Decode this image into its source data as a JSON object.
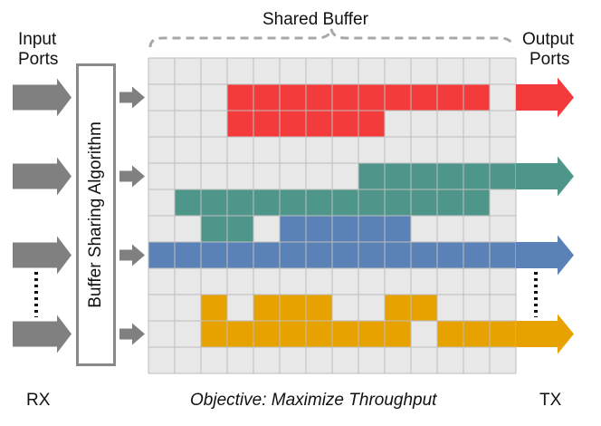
{
  "labels": {
    "shared_buffer": "Shared Buffer",
    "input_ports_line1": "Input",
    "input_ports_line2": "Ports",
    "output_ports_line1": "Output",
    "output_ports_line2": "Ports",
    "algorithm": "Buffer Sharing Algorithm",
    "rx": "RX",
    "tx": "TX",
    "objective": "Objective: Maximize Throughput"
  },
  "colors": {
    "red": "#f33b3b",
    "teal": "#4e968a",
    "blue": "#5a82b6",
    "orange": "#e8a200",
    "arrow_gray": "#808080",
    "grid_cell": "#e8e8e8",
    "grid_line": "#bdbdbd",
    "brace": "#a8a8a8"
  },
  "grid": {
    "columns": 14,
    "rows": 12
  },
  "flows": [
    {
      "name": "red-flow",
      "color": "red",
      "cells": [
        [
          1,
          3,
          12
        ],
        [
          2,
          3,
          8
        ]
      ]
    },
    {
      "name": "teal-flow",
      "color": "teal",
      "cells": [
        [
          4,
          8,
          13
        ],
        [
          5,
          1,
          12
        ],
        [
          6,
          2,
          3
        ]
      ]
    },
    {
      "name": "blue-flow",
      "color": "blue",
      "cells": [
        [
          6,
          5,
          9
        ],
        [
          7,
          0,
          13
        ]
      ]
    },
    {
      "name": "orange-flow",
      "color": "orange",
      "cells": [
        [
          9,
          2,
          2
        ],
        [
          9,
          4,
          6
        ],
        [
          9,
          9,
          10
        ],
        [
          10,
          2,
          9
        ],
        [
          10,
          11,
          13
        ]
      ]
    }
  ],
  "output_arrow_rows": [
    1.5,
    4.5,
    7.5,
    10.5
  ],
  "input_arrow_rows": [
    1.5,
    4.5,
    7.5,
    10.5
  ]
}
